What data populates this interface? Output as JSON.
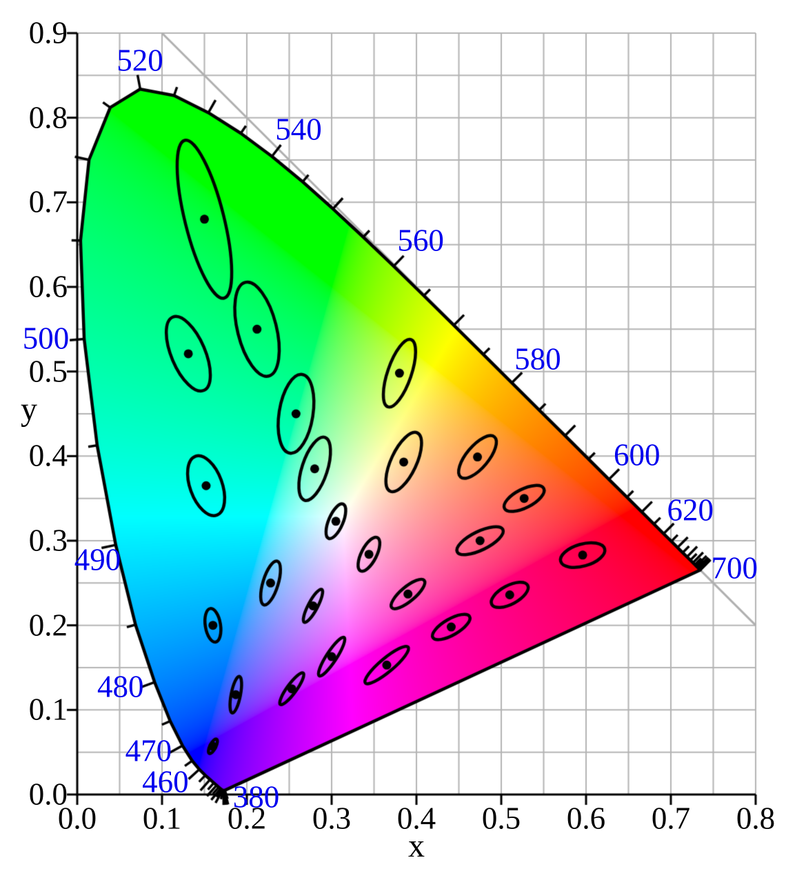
{
  "chart_data": {
    "type": "scatter",
    "description": "CIE 1931 xy chromaticity diagram with MacAdam ellipses magnified 10x",
    "xlabel": "x",
    "ylabel": "y",
    "xlim": [
      0.0,
      0.8
    ],
    "ylim": [
      0.0,
      0.9
    ],
    "grid_step": 0.05,
    "grid_on": true,
    "x_ticks": [
      {
        "value": 0.0,
        "label": "0.0"
      },
      {
        "value": 0.1,
        "label": "0.1"
      },
      {
        "value": 0.2,
        "label": "0.2"
      },
      {
        "value": 0.3,
        "label": "0.3"
      },
      {
        "value": 0.4,
        "label": "0.4"
      },
      {
        "value": 0.5,
        "label": "0.5"
      },
      {
        "value": 0.6,
        "label": "0.6"
      },
      {
        "value": 0.7,
        "label": "0.7"
      },
      {
        "value": 0.8,
        "label": "0.8"
      }
    ],
    "y_ticks": [
      {
        "value": 0.0,
        "label": "0.0"
      },
      {
        "value": 0.1,
        "label": "0.1"
      },
      {
        "value": 0.2,
        "label": "0.2"
      },
      {
        "value": 0.3,
        "label": "0.3"
      },
      {
        "value": 0.4,
        "label": "0.4"
      },
      {
        "value": 0.5,
        "label": "0.5"
      },
      {
        "value": 0.6,
        "label": "0.6"
      },
      {
        "value": 0.7,
        "label": "0.7"
      },
      {
        "value": 0.8,
        "label": "0.8"
      },
      {
        "value": 0.9,
        "label": "0.9"
      }
    ],
    "wavelength_labels": [
      {
        "nm": "380",
        "x": 0.211,
        "y": -0.003
      },
      {
        "nm": "460",
        "x": 0.104,
        "y": 0.015
      },
      {
        "nm": "470",
        "x": 0.084,
        "y": 0.051
      },
      {
        "nm": "480",
        "x": 0.051,
        "y": 0.127
      },
      {
        "nm": "490",
        "x": 0.024,
        "y": 0.277
      },
      {
        "nm": "500",
        "x": -0.037,
        "y": 0.539
      },
      {
        "nm": "520",
        "x": 0.074,
        "y": 0.867
      },
      {
        "nm": "540",
        "x": 0.261,
        "y": 0.786
      },
      {
        "nm": "560",
        "x": 0.405,
        "y": 0.655
      },
      {
        "nm": "580",
        "x": 0.543,
        "y": 0.514
      },
      {
        "nm": "600",
        "x": 0.66,
        "y": 0.401
      },
      {
        "nm": "620",
        "x": 0.723,
        "y": 0.336
      },
      {
        "nm": "700",
        "x": 0.775,
        "y": 0.267
      }
    ],
    "tangent_line": {
      "from": [
        0.1,
        0.9
      ],
      "to": [
        0.8,
        0.2
      ]
    },
    "spectral_locus": [
      [
        380,
        0.1741,
        0.005
      ],
      [
        385,
        0.174,
        0.005
      ],
      [
        390,
        0.1738,
        0.0049
      ],
      [
        395,
        0.1736,
        0.0049
      ],
      [
        400,
        0.1733,
        0.0048
      ],
      [
        405,
        0.173,
        0.0048
      ],
      [
        410,
        0.1726,
        0.0048
      ],
      [
        415,
        0.1721,
        0.0048
      ],
      [
        420,
        0.1714,
        0.0051
      ],
      [
        425,
        0.1703,
        0.0058
      ],
      [
        430,
        0.1689,
        0.0069
      ],
      [
        435,
        0.1669,
        0.0086
      ],
      [
        440,
        0.1644,
        0.0109
      ],
      [
        445,
        0.1611,
        0.0138
      ],
      [
        450,
        0.1566,
        0.0177
      ],
      [
        455,
        0.151,
        0.0227
      ],
      [
        460,
        0.144,
        0.0297
      ],
      [
        465,
        0.1355,
        0.0399
      ],
      [
        470,
        0.1241,
        0.0578
      ],
      [
        475,
        0.1096,
        0.0868
      ],
      [
        480,
        0.0913,
        0.1327
      ],
      [
        485,
        0.0687,
        0.2007
      ],
      [
        490,
        0.0454,
        0.295
      ],
      [
        495,
        0.0235,
        0.4127
      ],
      [
        500,
        0.0082,
        0.5384
      ],
      [
        505,
        0.0039,
        0.6548
      ],
      [
        510,
        0.0139,
        0.7502
      ],
      [
        515,
        0.0389,
        0.812
      ],
      [
        520,
        0.0743,
        0.8338
      ],
      [
        525,
        0.1142,
        0.8262
      ],
      [
        530,
        0.1547,
        0.8059
      ],
      [
        535,
        0.1929,
        0.7816
      ],
      [
        540,
        0.2296,
        0.7543
      ],
      [
        545,
        0.2658,
        0.7243
      ],
      [
        550,
        0.3016,
        0.6923
      ],
      [
        555,
        0.3373,
        0.6589
      ],
      [
        560,
        0.3731,
        0.6245
      ],
      [
        565,
        0.4087,
        0.5896
      ],
      [
        570,
        0.4441,
        0.5547
      ],
      [
        575,
        0.4788,
        0.5202
      ],
      [
        580,
        0.5125,
        0.4866
      ],
      [
        585,
        0.5448,
        0.4544
      ],
      [
        590,
        0.5752,
        0.4242
      ],
      [
        595,
        0.6029,
        0.3965
      ],
      [
        600,
        0.627,
        0.3725
      ],
      [
        605,
        0.6482,
        0.3514
      ],
      [
        610,
        0.6658,
        0.334
      ],
      [
        615,
        0.6801,
        0.3197
      ],
      [
        620,
        0.6915,
        0.3083
      ],
      [
        625,
        0.7006,
        0.2993
      ],
      [
        630,
        0.7079,
        0.292
      ],
      [
        635,
        0.714,
        0.2859
      ],
      [
        640,
        0.719,
        0.2809
      ],
      [
        645,
        0.723,
        0.277
      ],
      [
        650,
        0.726,
        0.274
      ],
      [
        655,
        0.7283,
        0.2717
      ],
      [
        660,
        0.73,
        0.27
      ],
      [
        665,
        0.7311,
        0.2689
      ],
      [
        670,
        0.732,
        0.268
      ],
      [
        675,
        0.7327,
        0.2673
      ],
      [
        680,
        0.7334,
        0.2666
      ],
      [
        685,
        0.734,
        0.266
      ],
      [
        690,
        0.7344,
        0.2656
      ],
      [
        695,
        0.7346,
        0.2654
      ],
      [
        700,
        0.7347,
        0.2653
      ]
    ],
    "macadam_ellipses_note": "a,b are semi-axes in 0.001 xy units (before magnification), theta in degrees CCW from +x axis",
    "magnification": 10,
    "macadam_ellipses": [
      {
        "x": 0.16,
        "y": 0.057,
        "a": 0.95,
        "b": 0.35,
        "theta": 63
      },
      {
        "x": 0.187,
        "y": 0.118,
        "a": 2.2,
        "b": 0.55,
        "theta": 79
      },
      {
        "x": 0.253,
        "y": 0.125,
        "a": 2.3,
        "b": 0.55,
        "theta": 54
      },
      {
        "x": 0.15,
        "y": 0.68,
        "a": 9.6,
        "b": 2.3,
        "theta": 104
      },
      {
        "x": 0.131,
        "y": 0.521,
        "a": 4.7,
        "b": 2.0,
        "theta": 113
      },
      {
        "x": 0.212,
        "y": 0.55,
        "a": 5.7,
        "b": 2.3,
        "theta": 104
      },
      {
        "x": 0.258,
        "y": 0.45,
        "a": 4.7,
        "b": 2.0,
        "theta": 81
      },
      {
        "x": 0.152,
        "y": 0.365,
        "a": 3.7,
        "b": 1.9,
        "theta": 110
      },
      {
        "x": 0.28,
        "y": 0.385,
        "a": 3.9,
        "b": 1.5,
        "theta": 72
      },
      {
        "x": 0.38,
        "y": 0.498,
        "a": 4.2,
        "b": 1.4,
        "theta": 71
      },
      {
        "x": 0.16,
        "y": 0.2,
        "a": 2.0,
        "b": 0.9,
        "theta": 99
      },
      {
        "x": 0.228,
        "y": 0.25,
        "a": 2.7,
        "b": 0.9,
        "theta": 73
      },
      {
        "x": 0.305,
        "y": 0.323,
        "a": 2.2,
        "b": 0.85,
        "theta": 67
      },
      {
        "x": 0.385,
        "y": 0.393,
        "a": 3.8,
        "b": 1.5,
        "theta": 65
      },
      {
        "x": 0.472,
        "y": 0.399,
        "a": 3.1,
        "b": 1.3,
        "theta": 50
      },
      {
        "x": 0.527,
        "y": 0.35,
        "a": 2.6,
        "b": 1.1,
        "theta": 27
      },
      {
        "x": 0.475,
        "y": 0.3,
        "a": 3.0,
        "b": 1.1,
        "theta": 26
      },
      {
        "x": 0.51,
        "y": 0.236,
        "a": 2.4,
        "b": 1.1,
        "theta": 28
      },
      {
        "x": 0.596,
        "y": 0.283,
        "a": 2.7,
        "b": 1.3,
        "theta": 16
      },
      {
        "x": 0.344,
        "y": 0.284,
        "a": 2.2,
        "b": 0.9,
        "theta": 63
      },
      {
        "x": 0.39,
        "y": 0.237,
        "a": 2.5,
        "b": 0.85,
        "theta": 40
      },
      {
        "x": 0.441,
        "y": 0.198,
        "a": 2.5,
        "b": 0.95,
        "theta": 30
      },
      {
        "x": 0.278,
        "y": 0.223,
        "a": 2.2,
        "b": 0.55,
        "theta": 62
      },
      {
        "x": 0.3,
        "y": 0.163,
        "a": 2.7,
        "b": 0.6,
        "theta": 57
      },
      {
        "x": 0.365,
        "y": 0.153,
        "a": 3.3,
        "b": 0.8,
        "theta": 40
      }
    ],
    "colors": {
      "background": "#ffffff",
      "grid": "#b4b4b4",
      "axis": "#000000",
      "locus_stroke": "#000000",
      "ellipse_stroke": "#000000",
      "tangent_line": "#b0b0b0",
      "wavelength_label": "#0000ee",
      "tick_label": "#000000"
    }
  }
}
